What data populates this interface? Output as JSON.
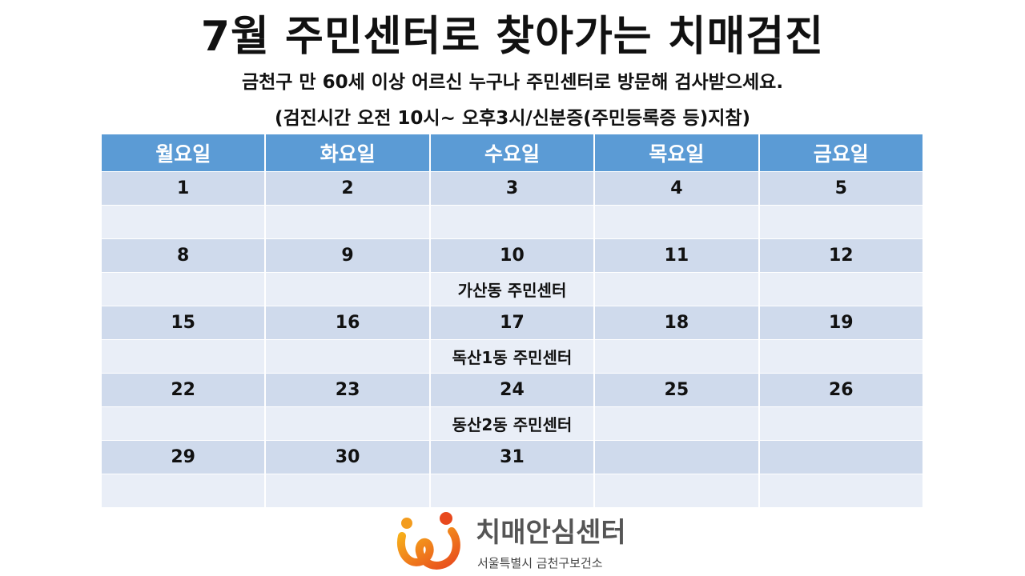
{
  "title": "7월 주민센터로 찾아가는 치매검진",
  "subtitle": "금천구 만 60세 이상 어르신 누구나 주민센터로 방문해 검사받으세요.",
  "note": "(검진시간 오전 10시~ 오후3시/신분증(주민등록증 등)지참)",
  "calendar": {
    "headers": [
      "월요일",
      "화요일",
      "수요일",
      "목요일",
      "금요일"
    ],
    "weeks": [
      {
        "days": [
          "1",
          "2",
          "3",
          "4",
          "5"
        ],
        "notes": [
          "",
          "",
          "",
          "",
          ""
        ]
      },
      {
        "days": [
          "8",
          "9",
          "10",
          "11",
          "12"
        ],
        "notes": [
          "",
          "",
          "가산동 주민센터",
          "",
          ""
        ]
      },
      {
        "days": [
          "15",
          "16",
          "17",
          "18",
          "19"
        ],
        "notes": [
          "",
          "",
          "독산1동 주민센터",
          "",
          ""
        ]
      },
      {
        "days": [
          "22",
          "23",
          "24",
          "25",
          "26"
        ],
        "notes": [
          "",
          "",
          "동산2동 주민센터",
          "",
          ""
        ]
      },
      {
        "days": [
          "29",
          "30",
          "31",
          "",
          ""
        ],
        "notes": [
          "",
          "",
          "",
          "",
          ""
        ]
      }
    ]
  },
  "logo": {
    "name": "치매안심센터",
    "org": "서울특별시 금천구보건소"
  },
  "colors": {
    "header_bg": "#5b9bd5",
    "number_row_bg": "#cfdaec",
    "note_row_bg": "#e9eef7",
    "logo_orange": "#f39c1f",
    "logo_red": "#e8491d"
  }
}
